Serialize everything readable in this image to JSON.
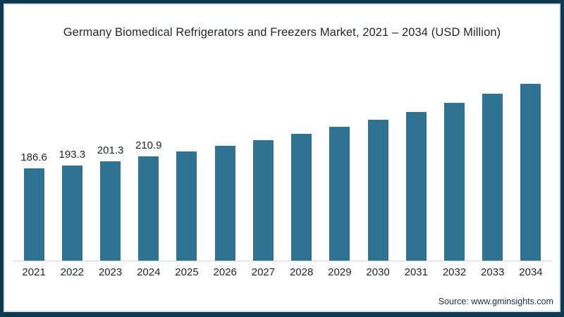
{
  "title": "Germany Biomedical Refrigerators and Freezers Market, 2021 – 2034 (USD Million)",
  "source": "Source: www.gminsights.com",
  "frame": {
    "border_color": "#10394f",
    "inner_line_color": "#cfe4ee",
    "background": "#ffffff"
  },
  "chart_data": {
    "type": "bar",
    "title": "Germany Biomedical Refrigerators and Freezers Market, 2021 – 2034 (USD Million)",
    "categories": [
      "2021",
      "2022",
      "2023",
      "2024",
      "2025",
      "2026",
      "2027",
      "2028",
      "2029",
      "2030",
      "2031",
      "2032",
      "2033",
      "2034"
    ],
    "values": [
      186.6,
      193.3,
      201.3,
      210.9,
      221.5,
      232.4,
      244.1,
      257.2,
      271.0,
      286.2,
      301.5,
      319.5,
      338.5,
      358.0
    ],
    "data_labels": [
      "186.6",
      "193.3",
      "201.3",
      "210.9",
      "",
      "",
      "",
      "",
      "",
      "",
      "",
      "",
      "",
      ""
    ],
    "bar_color": "#2e7294",
    "value_label_color": "#1e2530",
    "axis_label_color": "#1e2530",
    "baseline_color": "#d8d8d8",
    "xlabel": "",
    "ylabel": "",
    "ylim": [
      0,
      380
    ],
    "grid": false,
    "legend": "none"
  }
}
